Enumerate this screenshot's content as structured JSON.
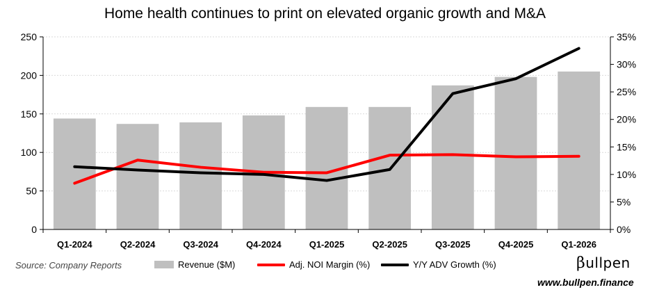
{
  "chart_data": {
    "type": "bar",
    "title": "Home health continues to print on elevated organic growth and M&A",
    "categories": [
      "Q1-2024",
      "Q2-2024",
      "Q3-2024",
      "Q4-2024",
      "Q1-2025",
      "Q2-2025",
      "Q3-2025",
      "Q4-2025",
      "Q1-2026"
    ],
    "y_left": {
      "ylim": [
        0,
        250
      ],
      "ticks": [
        "0",
        "50",
        "100",
        "150",
        "200",
        "250"
      ]
    },
    "y_right": {
      "ylim": [
        0,
        35
      ],
      "ticks": [
        "0%",
        "5%",
        "10%",
        "15%",
        "20%",
        "25%",
        "30%",
        "35%"
      ]
    },
    "series": [
      {
        "name": "Revenue ($M)",
        "type": "bar",
        "axis": "left",
        "color": "#bfbfbf",
        "values": [
          144,
          137,
          139,
          148,
          159,
          159,
          187,
          198,
          205
        ]
      },
      {
        "name": "Adj. NOI Margin (%)",
        "type": "line",
        "axis": "right",
        "color": "#ff0000",
        "values": [
          8.4,
          12.6,
          11.3,
          10.4,
          10.3,
          13.5,
          13.6,
          13.2,
          13.3
        ]
      },
      {
        "name": "Y/Y ADV Growth (%)",
        "type": "line",
        "axis": "right",
        "color": "#000000",
        "values": [
          11.4,
          10.8,
          10.3,
          10.0,
          8.9,
          10.9,
          24.7,
          27.4,
          32.9
        ]
      }
    ],
    "grid": true,
    "legend_position": "bottom"
  },
  "footer": {
    "source": "Source: Company Reports",
    "brand_name": "ullpen",
    "brand_initial": "β",
    "brand_url": "www.bullpen.finance"
  }
}
